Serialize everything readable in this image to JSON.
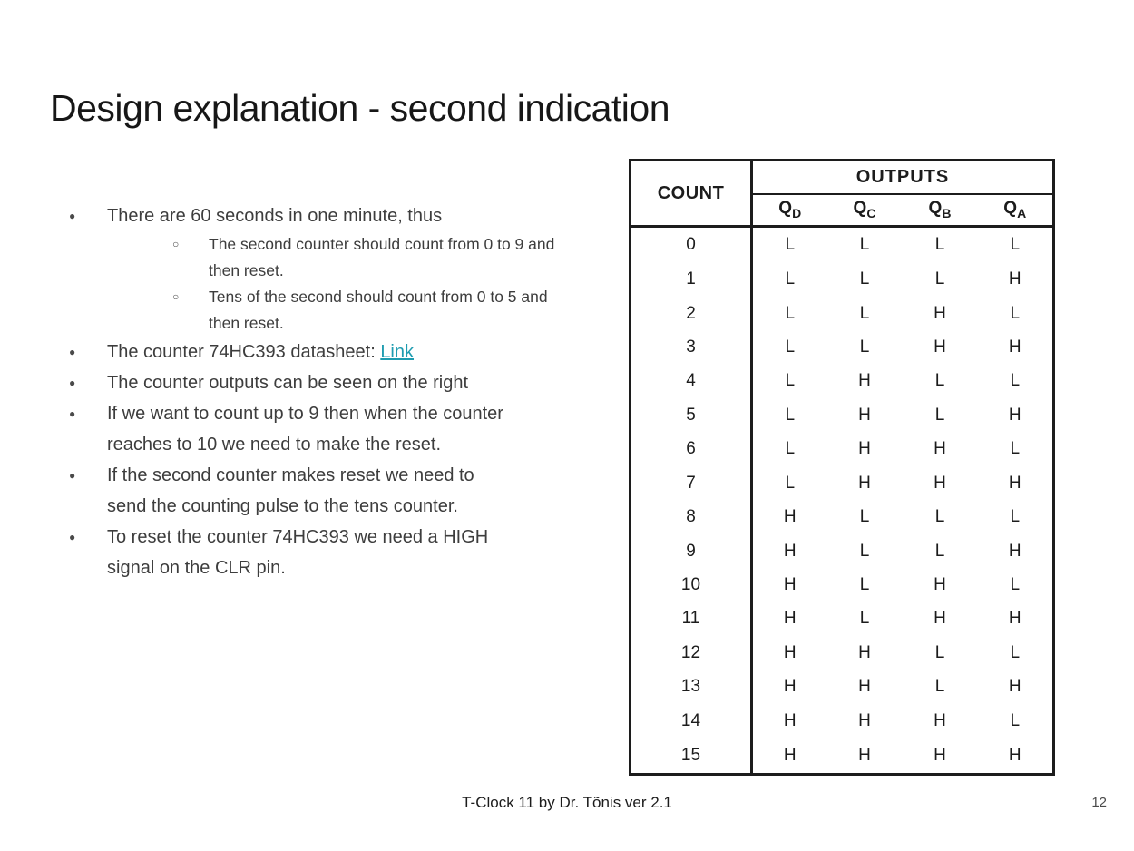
{
  "slide": {
    "title": "Design explanation - second indication",
    "footer_text": "T-Clock 11 by Dr. Tõnis ver 2.1",
    "page_number": "12"
  },
  "colors": {
    "link": "#1e9cb0",
    "body_text": "#3d3d3d",
    "table_border": "#1c1c1c"
  },
  "bullets": {
    "marker_level1": "●",
    "marker_level2": "○",
    "items": [
      {
        "text": "There are 60 seconds in one minute, thus",
        "sub": [
          "The second counter should count from 0 to 9 and then reset.",
          "Tens of the second should count from 0 to 5 and then reset."
        ]
      },
      {
        "text": "The counter 74HC393 datasheet: ",
        "link_label": "Link"
      },
      {
        "text": "The counter outputs can be seen on the right"
      },
      {
        "text": "If we want to count up to 9 then when the counter reaches to 10 we need to make the reset."
      },
      {
        "text": "If the second counter makes reset we need to send the counting pulse to the tens counter."
      },
      {
        "text": "To reset the counter 74HC393 we need a HIGH signal on the CLR pin."
      }
    ]
  },
  "table": {
    "count_header": "COUNT",
    "outputs_header": "OUTPUTS",
    "columns": [
      {
        "base": "Q",
        "sub": "D"
      },
      {
        "base": "Q",
        "sub": "C"
      },
      {
        "base": "Q",
        "sub": "B"
      },
      {
        "base": "Q",
        "sub": "A"
      }
    ],
    "rows": [
      {
        "count": "0",
        "values": [
          "L",
          "L",
          "L",
          "L"
        ]
      },
      {
        "count": "1",
        "values": [
          "L",
          "L",
          "L",
          "H"
        ]
      },
      {
        "count": "2",
        "values": [
          "L",
          "L",
          "H",
          "L"
        ]
      },
      {
        "count": "3",
        "values": [
          "L",
          "L",
          "H",
          "H"
        ]
      },
      {
        "count": "4",
        "values": [
          "L",
          "H",
          "L",
          "L"
        ]
      },
      {
        "count": "5",
        "values": [
          "L",
          "H",
          "L",
          "H"
        ]
      },
      {
        "count": "6",
        "values": [
          "L",
          "H",
          "H",
          "L"
        ]
      },
      {
        "count": "7",
        "values": [
          "L",
          "H",
          "H",
          "H"
        ]
      },
      {
        "count": "8",
        "values": [
          "H",
          "L",
          "L",
          "L"
        ]
      },
      {
        "count": "9",
        "values": [
          "H",
          "L",
          "L",
          "H"
        ]
      },
      {
        "count": "10",
        "values": [
          "H",
          "L",
          "H",
          "L"
        ]
      },
      {
        "count": "11",
        "values": [
          "H",
          "L",
          "H",
          "H"
        ]
      },
      {
        "count": "12",
        "values": [
          "H",
          "H",
          "L",
          "L"
        ]
      },
      {
        "count": "13",
        "values": [
          "H",
          "H",
          "L",
          "H"
        ]
      },
      {
        "count": "14",
        "values": [
          "H",
          "H",
          "H",
          "L"
        ]
      },
      {
        "count": "15",
        "values": [
          "H",
          "H",
          "H",
          "H"
        ]
      }
    ]
  }
}
